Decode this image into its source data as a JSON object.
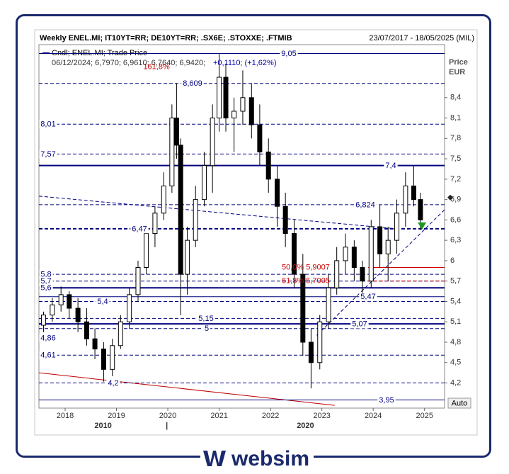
{
  "chart_data": {
    "type": "candlestick",
    "title": "Weekly ENEL.MI; IT10YT=RR; DE10YT=RR; .SX6E; .STOXXE; .FTMIB",
    "date_range": "23/07/2017 - 18/05/2025 (MIL)",
    "legend_label": "Cndl; ENEL.MI; Trade Price",
    "info_ohlc": "06/12/2024; 6,7970; 6,9610; 6,7640; 6,9420;",
    "info_change": "+0,1110; (+1,62%)",
    "y_axis_label": "Price",
    "y_axis_unit": "EUR",
    "auto_button": "Auto",
    "color": "#000000",
    "xlim": [
      2017.49,
      2025.39
    ],
    "ylim": [
      3.83,
      9.18
    ],
    "xticks": [
      2018,
      2019,
      2020,
      2021,
      2022,
      2023,
      2024,
      2025
    ],
    "x_secondary_labels": [
      {
        "value": 2018.74,
        "label": "2010"
      },
      {
        "value": 2019.98,
        "label": "|"
      },
      {
        "value": 2022.68,
        "label": "2020"
      }
    ],
    "yticks": [
      {
        "value": 4.2,
        "label": "4,2"
      },
      {
        "value": 4.5,
        "label": "4,5"
      },
      {
        "value": 4.8,
        "label": "4,8"
      },
      {
        "value": 5.1,
        "label": "5,1"
      },
      {
        "value": 5.4,
        "label": "5,4"
      },
      {
        "value": 5.7,
        "label": "5,7"
      },
      {
        "value": 6,
        "label": "6"
      },
      {
        "value": 6.3,
        "label": "6,3"
      },
      {
        "value": 6.6,
        "label": "6,6"
      },
      {
        "value": 6.9,
        "label": "6,9"
      },
      {
        "value": 7.2,
        "label": "7,2"
      },
      {
        "value": 7.5,
        "label": "7,5"
      },
      {
        "value": 7.8,
        "label": "7,8"
      },
      {
        "value": 8.1,
        "label": "8,1"
      },
      {
        "value": 8.4,
        "label": "8,4"
      }
    ],
    "x": [
      2017.58,
      2017.75,
      2017.92,
      2018.08,
      2018.25,
      2018.42,
      2018.58,
      2018.75,
      2018.92,
      2019.08,
      2019.25,
      2019.42,
      2019.58,
      2019.75,
      2019.92,
      2020.08,
      2020.17,
      2020.25,
      2020.38,
      2020.54,
      2020.71,
      2020.87,
      2021.0,
      2021.13,
      2021.29,
      2021.46,
      2021.63,
      2021.79,
      2021.96,
      2022.13,
      2022.29,
      2022.46,
      2022.63,
      2022.79,
      2022.96,
      2023.13,
      2023.29,
      2023.46,
      2023.63,
      2023.79,
      2023.96,
      2024.13,
      2024.29,
      2024.46,
      2024.63,
      2024.79,
      2024.92
    ],
    "open": [
      5.05,
      5.2,
      5.35,
      5.5,
      5.3,
      5.1,
      4.85,
      4.7,
      4.4,
      4.75,
      5.1,
      5.5,
      5.9,
      6.4,
      6.7,
      7.1,
      8.1,
      7.7,
      5.8,
      6.3,
      6.9,
      7.4,
      8.1,
      8.7,
      8.1,
      8.2,
      8.4,
      8.0,
      7.6,
      7.2,
      6.8,
      6.4,
      5.8,
      4.8,
      4.5,
      5.1,
      5.6,
      6.0,
      6.2,
      5.9,
      5.7,
      6.5,
      6.1,
      6.3,
      6.7,
      7.1,
      6.9
    ],
    "high": [
      5.25,
      5.45,
      5.62,
      5.55,
      5.45,
      5.3,
      5.0,
      4.8,
      4.85,
      5.2,
      5.6,
      6.0,
      6.5,
      6.8,
      7.3,
      8.3,
      8.61,
      7.8,
      6.5,
      7.1,
      7.6,
      8.3,
      9.05,
      8.9,
      8.4,
      8.8,
      8.6,
      8.3,
      7.8,
      7.4,
      7.0,
      6.6,
      6.1,
      5.0,
      5.2,
      5.8,
      6.2,
      6.4,
      6.3,
      6.0,
      6.6,
      6.82,
      6.5,
      6.9,
      7.3,
      7.4,
      7.0
    ],
    "low": [
      4.95,
      5.1,
      5.25,
      5.15,
      4.95,
      4.75,
      4.55,
      4.22,
      4.3,
      4.7,
      5.0,
      5.4,
      5.8,
      6.2,
      6.6,
      7.0,
      7.5,
      5.2,
      5.5,
      6.2,
      6.8,
      7.0,
      7.9,
      7.9,
      7.6,
      8.0,
      7.8,
      7.4,
      7.0,
      6.5,
      6.2,
      5.6,
      4.6,
      4.12,
      4.4,
      5.0,
      5.5,
      5.8,
      5.7,
      5.45,
      5.6,
      5.9,
      5.7,
      6.1,
      6.5,
      6.8,
      6.45
    ],
    "close": [
      5.2,
      5.35,
      5.5,
      5.3,
      5.1,
      4.85,
      4.7,
      4.4,
      4.75,
      5.1,
      5.5,
      5.9,
      6.4,
      6.7,
      7.1,
      8.1,
      7.7,
      5.8,
      6.3,
      6.9,
      7.4,
      8.1,
      8.7,
      8.1,
      8.2,
      8.4,
      8.0,
      7.6,
      7.2,
      6.8,
      6.4,
      5.8,
      4.8,
      4.5,
      5.1,
      5.6,
      6.0,
      6.2,
      5.9,
      5.7,
      6.5,
      6.1,
      6.3,
      6.7,
      7.1,
      6.9,
      6.6
    ],
    "levels": [
      {
        "value": 9.05,
        "label": "9,05",
        "style": "solid"
      },
      {
        "value": 8.609,
        "label": "8,609",
        "style": "dashed"
      },
      {
        "value": 8.01,
        "label": "8,01",
        "style": "dashed"
      },
      {
        "value": 7.57,
        "label": "7,57",
        "style": "dashed"
      },
      {
        "value": 7.4,
        "label": "7,4",
        "style": "thick"
      },
      {
        "value": 6.824,
        "label": "6,824",
        "style": "dashed"
      },
      {
        "value": 6.47,
        "label": "6,47",
        "style": "thick-dashed"
      },
      {
        "value": 5.8,
        "label": "5,8",
        "style": "dashed"
      },
      {
        "value": 5.7,
        "label": "5,7",
        "style": "dashed"
      },
      {
        "value": 5.6,
        "label": "5,6",
        "style": "thick"
      },
      {
        "value": 5.47,
        "label": "5,47",
        "style": "solid"
      },
      {
        "value": 5.4,
        "label": "5,4",
        "style": "dashed"
      },
      {
        "value": 5.15,
        "label": "5,15",
        "style": "dashed"
      },
      {
        "value": 5.07,
        "label": "5,07",
        "style": "thick"
      },
      {
        "value": 5,
        "label": "5",
        "style": "dashed"
      },
      {
        "value": 4.86,
        "label": "4,86",
        "style": "none"
      },
      {
        "value": 4.61,
        "label": "4,61",
        "style": "dashed"
      },
      {
        "value": 4.2,
        "label": "4,2",
        "style": "dashed"
      },
      {
        "value": 3.95,
        "label": "3,95",
        "style": "solid"
      }
    ],
    "level_color": "#00007f",
    "fib_color": "#d00000",
    "fib_levels": [
      {
        "value": 5.9007,
        "label": "50,0% 5,9007",
        "start": 2023.9,
        "style": "solid"
      },
      {
        "value": 5.7005,
        "label": "61,8% 5,7005",
        "start": 2023.9,
        "style": "dashed"
      }
    ],
    "fib_extension": {
      "x": 2019.78,
      "y": 8.85,
      "label": "161,8%"
    },
    "trendlines": [
      {
        "x": [
          2017.49,
          2023.25
        ],
        "y": [
          4.35,
          3.87
        ],
        "color": "#c00000",
        "style": "solid"
      },
      {
        "x": [
          2017.49,
          2024.45
        ],
        "y": [
          6.95,
          6.47
        ],
        "color": "#00007f",
        "style": "dashed"
      },
      {
        "x": [
          2022.9,
          2025.39
        ],
        "y": [
          4.9,
          6.75
        ],
        "color": "#00007f",
        "style": "dashed"
      }
    ],
    "signal_marker": {
      "x": 2024.95,
      "y": 6.5,
      "color": "#1a9a1a"
    },
    "last_price": 6.93
  }
}
